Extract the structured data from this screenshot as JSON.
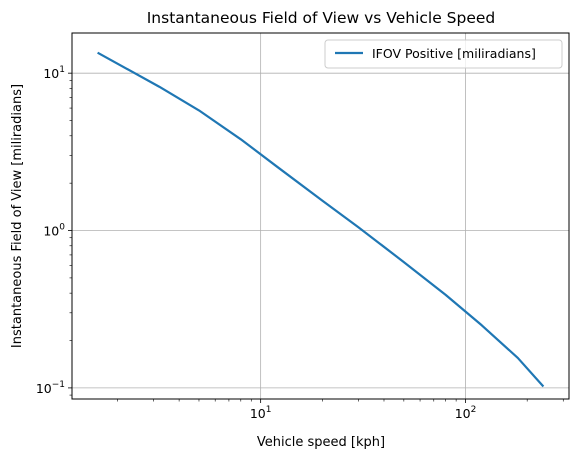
{
  "chart_data": {
    "type": "line",
    "title": "Instantaneous Field of View vs Vehicle Speed",
    "xlabel": "Vehicle speed [kph]",
    "ylabel": "Instantaneous Field of View [miliradians]",
    "xscale": "log",
    "yscale": "log",
    "xlim": [
      1.2,
      320
    ],
    "ylim": [
      0.085,
      18
    ],
    "grid": true,
    "legend_position": "top-right",
    "x_ticks": [
      {
        "value": 10,
        "base": "10",
        "exp": "1"
      },
      {
        "value": 100,
        "base": "10",
        "exp": "2"
      }
    ],
    "y_ticks": [
      {
        "value": 0.1,
        "base": "10",
        "exp": "−1"
      },
      {
        "value": 1,
        "base": "10",
        "exp": "0"
      },
      {
        "value": 10,
        "base": "10",
        "exp": "1"
      }
    ],
    "series": [
      {
        "name": "IFOV Positive [miliradians]",
        "color": "#1f77b4",
        "points": [
          [
            1.6,
            13.5
          ],
          [
            3.2,
            8.2
          ],
          [
            5,
            5.8
          ],
          [
            8,
            3.8
          ],
          [
            12,
            2.55
          ],
          [
            20,
            1.55
          ],
          [
            30,
            1.05
          ],
          [
            50,
            0.63
          ],
          [
            80,
            0.39
          ],
          [
            120,
            0.25
          ],
          [
            180,
            0.155
          ],
          [
            240,
            0.102
          ]
        ]
      }
    ]
  }
}
